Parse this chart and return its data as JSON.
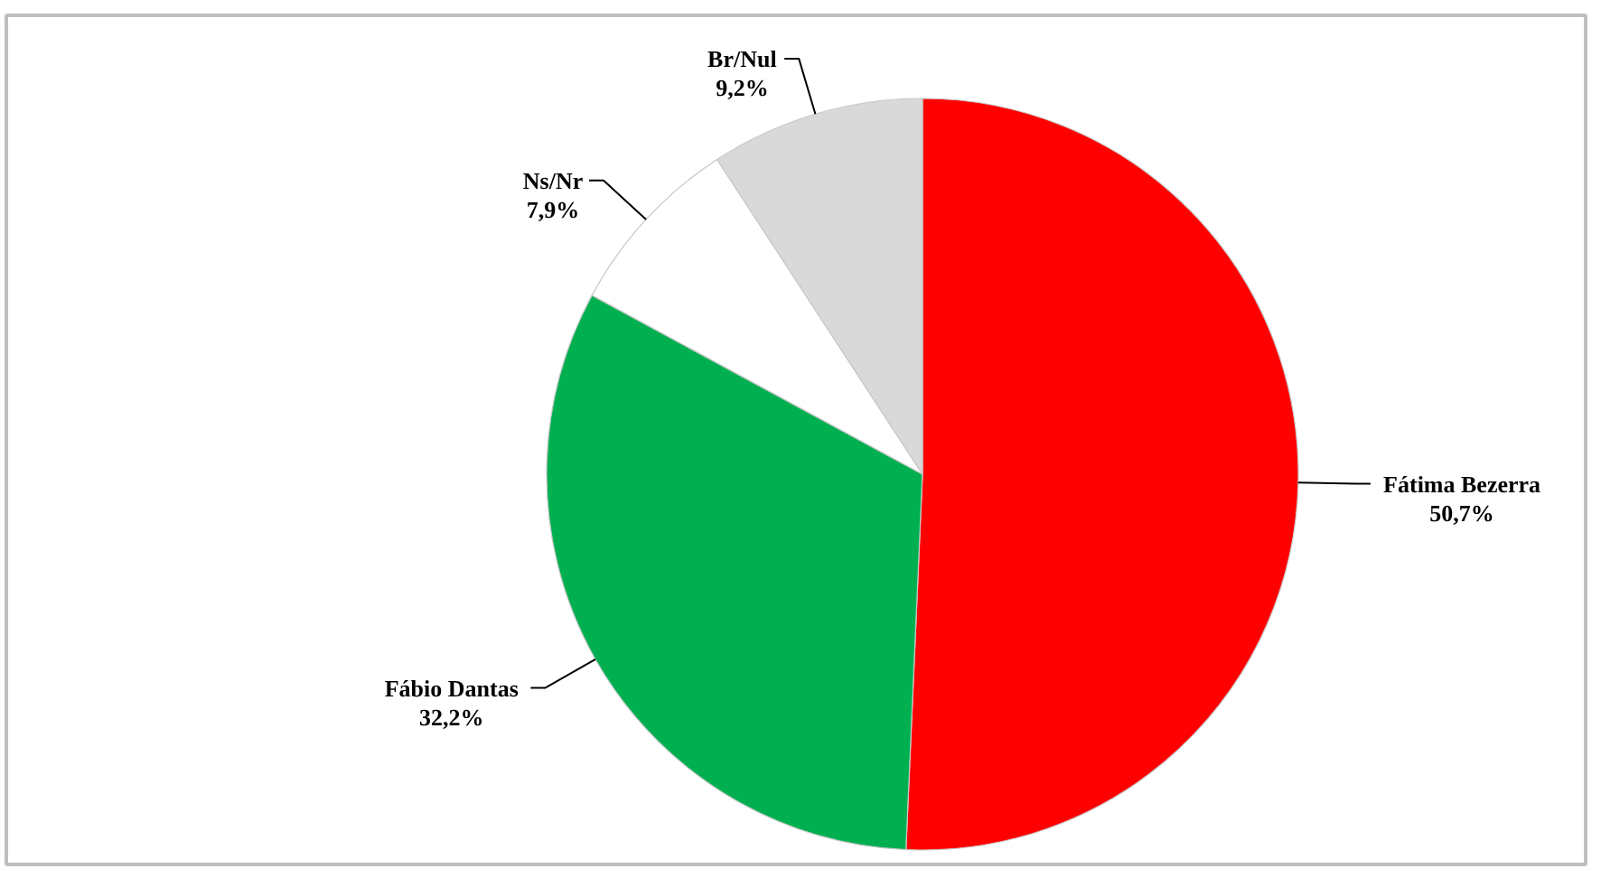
{
  "chart_data": {
    "type": "pie",
    "categories": [
      "Fátima Bezerra",
      "Fábio Dantas",
      "Ns/Nr",
      "Br/Nul"
    ],
    "values": [
      50.7,
      32.2,
      7.9,
      9.2
    ],
    "colors": [
      "#ff0000",
      "#00b050",
      "#ffffff",
      "#d9d9d9"
    ],
    "value_labels": [
      "50,7%",
      "32,2%",
      "7,9%",
      "9,2%"
    ]
  }
}
